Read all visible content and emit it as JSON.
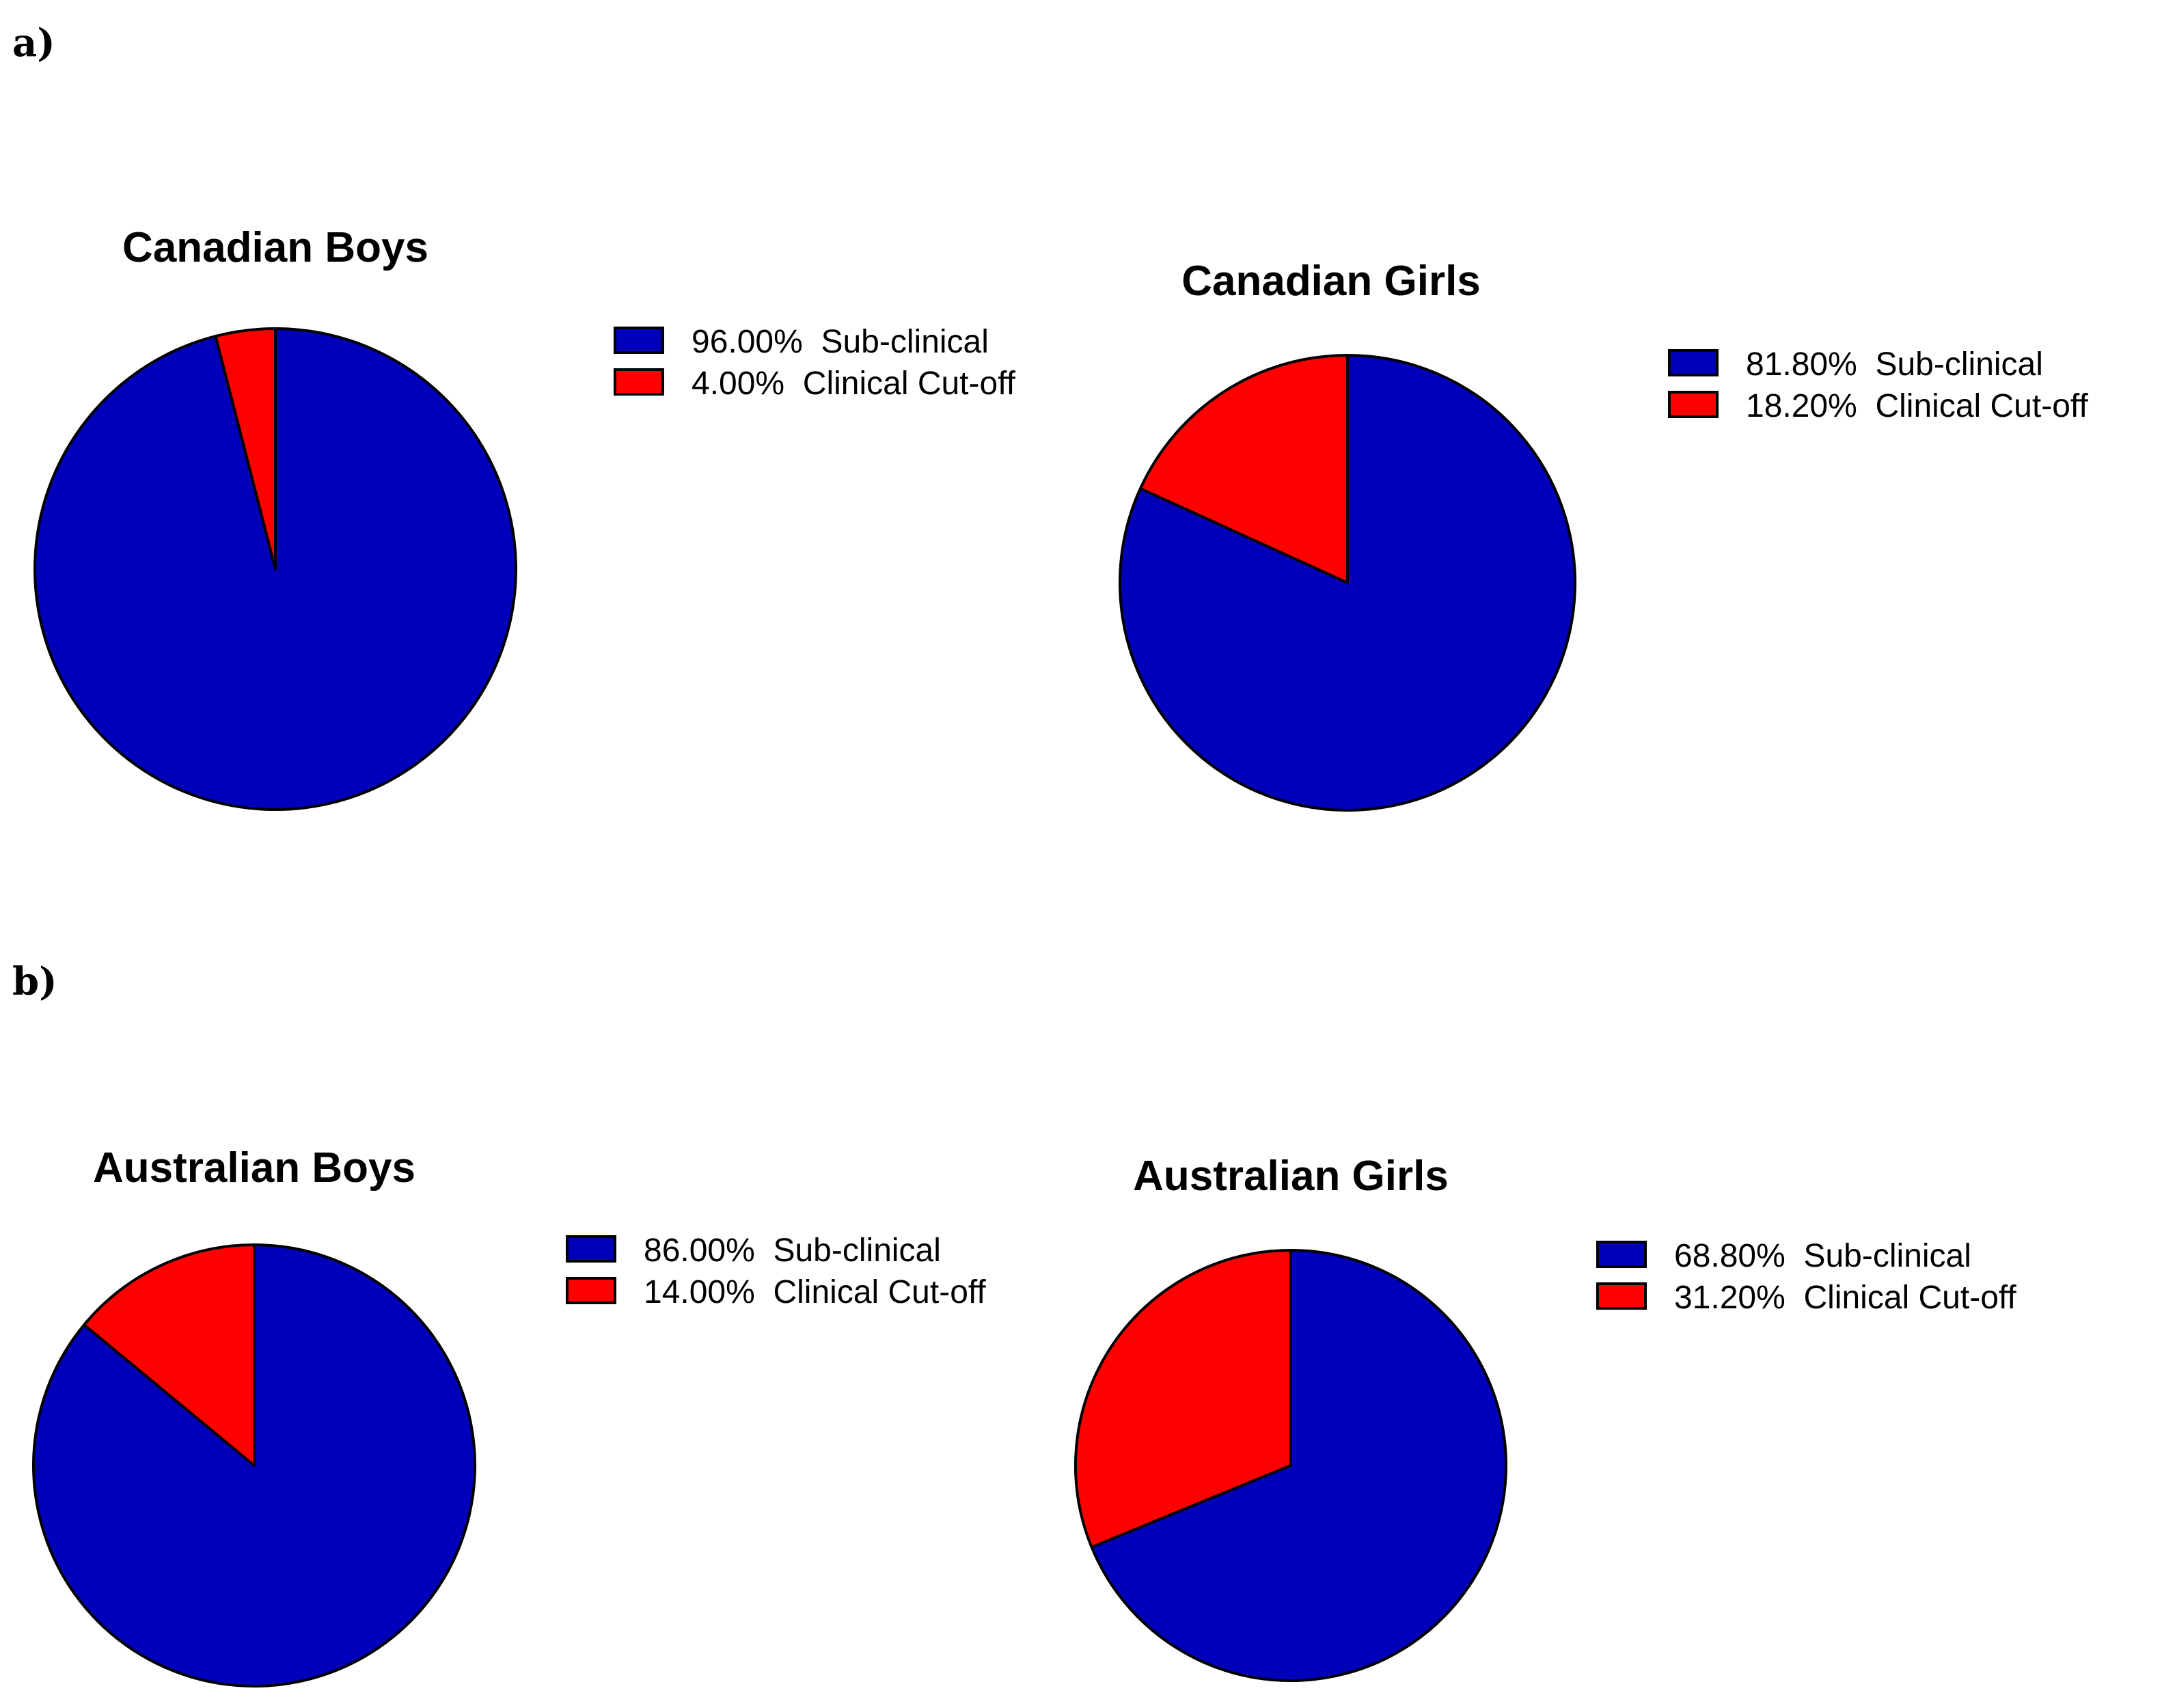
{
  "panels": [
    {
      "label": "a)"
    },
    {
      "label": "b)"
    }
  ],
  "colors": {
    "sub_clinical": "#0000bb",
    "clinical": "#ff0000",
    "stroke": "#000000"
  },
  "chart_data": [
    {
      "type": "pie",
      "title": "Canadian Boys",
      "categories": [
        "Sub-clinical",
        "Clinical Cut-off"
      ],
      "values": [
        96.0,
        4.0
      ],
      "legend_labels": [
        "96.00%  Sub-clinical",
        "4.00%  Clinical Cut-off"
      ],
      "legend": "right"
    },
    {
      "type": "pie",
      "title": "Canadian Girls",
      "categories": [
        "Sub-clinical",
        "Clinical Cut-off"
      ],
      "values": [
        81.8,
        18.2
      ],
      "legend_labels": [
        "81.80%  Sub-clinical",
        "18.20%  Clinical Cut-off"
      ],
      "legend": "right"
    },
    {
      "type": "pie",
      "title": "Australian Boys",
      "categories": [
        "Sub-clinical",
        "Clinical Cut-off"
      ],
      "values": [
        86.0,
        14.0
      ],
      "legend_labels": [
        "86.00%  Sub-clinical",
        "14.00%  Clinical Cut-off"
      ],
      "legend": "right"
    },
    {
      "type": "pie",
      "title": "Australian Girls",
      "categories": [
        "Sub-clinical",
        "Clinical Cut-off"
      ],
      "values": [
        68.8,
        31.2
      ],
      "legend_labels": [
        "68.80%  Sub-clinical",
        "31.20%  Clinical Cut-off"
      ],
      "legend": "right"
    }
  ]
}
